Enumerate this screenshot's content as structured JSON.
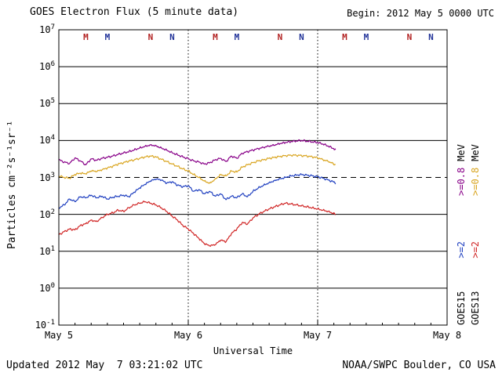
{
  "header": {
    "title": "GOES Electron Flux (5 minute data)",
    "begin": "Begin: 2012 May 5 0000 UTC"
  },
  "footer": {
    "updated": "Updated 2012 May  7 03:21:02 UTC",
    "credit": "NOAA/SWPC Boulder, CO USA"
  },
  "y_axis": {
    "label": "Particles cm⁻²s⁻¹sr⁻¹",
    "exponents": [
      7,
      6,
      5,
      4,
      3,
      2,
      1,
      0,
      -1
    ]
  },
  "x_axis": {
    "label": "Universal Time",
    "ticks": [
      {
        "hour": 0,
        "label": "May 5"
      },
      {
        "hour": 24,
        "label": "May 6"
      },
      {
        "hour": 48,
        "label": "May 7"
      },
      {
        "hour": 72,
        "label": "May 8"
      }
    ]
  },
  "day_lines_hours": [
    24,
    48
  ],
  "event_markers": [
    {
      "hour": 5,
      "label": "M",
      "color": "#B22222"
    },
    {
      "hour": 9,
      "label": "M",
      "color": "#223399"
    },
    {
      "hour": 17,
      "label": "N",
      "color": "#B22222"
    },
    {
      "hour": 21,
      "label": "N",
      "color": "#223399"
    },
    {
      "hour": 29,
      "label": "M",
      "color": "#B22222"
    },
    {
      "hour": 33,
      "label": "M",
      "color": "#223399"
    },
    {
      "hour": 41,
      "label": "N",
      "color": "#B22222"
    },
    {
      "hour": 45,
      "label": "N",
      "color": "#223399"
    },
    {
      "hour": 53,
      "label": "M",
      "color": "#B22222"
    },
    {
      "hour": 57,
      "label": "M",
      "color": "#223399"
    },
    {
      "hour": 65,
      "label": "N",
      "color": "#B22222"
    },
    {
      "hour": 69,
      "label": "N",
      "color": "#223399"
    }
  ],
  "legend": {
    "goes15": {
      "satellite": "GOES15",
      "e2": ">=2",
      "e08": ">=0.8",
      "mev": "MeV",
      "e08_color": "#880088",
      "e2_color": "#2040C0"
    },
    "goes13": {
      "satellite": "GOES13",
      "e2": ">=2",
      "e08": ">=0.8",
      "mev": "MeV",
      "e08_color": "#D9A520",
      "e2_color": "#D02525"
    }
  },
  "chart_data": {
    "type": "line",
    "title": "GOES Electron Flux (5 minute data)",
    "xlabel": "Universal Time",
    "ylabel": "Particles cm⁻²s⁻¹sr⁻¹",
    "y_scale": "log10",
    "ylim_exponents": [
      -1,
      7
    ],
    "x_range_hours": [
      0,
      72
    ],
    "x_day_labels": [
      "May 5",
      "May 6",
      "May 7",
      "May 8"
    ],
    "threshold_flux": 1000,
    "grid": "solid horizontal per decade, dashed at 1e3, dotted vertical at day boundaries",
    "x_hours": [
      0,
      1,
      2,
      3,
      4,
      5,
      6,
      7,
      8,
      9,
      10,
      11,
      12,
      13,
      14,
      15,
      16,
      17,
      18,
      19,
      20,
      21,
      22,
      23,
      24,
      25,
      26,
      27,
      28,
      29,
      30,
      31,
      32,
      33,
      34,
      35,
      36,
      37,
      38,
      39,
      40,
      41,
      42,
      43,
      44,
      45,
      46,
      47,
      48,
      49,
      50,
      51,
      51.3
    ],
    "series": [
      {
        "name": "GOES13 >=2 MeV",
        "color": "#D02525",
        "flux": [
          28,
          34,
          40,
          38,
          50,
          56,
          70,
          64,
          82,
          100,
          110,
          130,
          120,
          150,
          180,
          200,
          220,
          200,
          180,
          150,
          120,
          90,
          70,
          50,
          40,
          30,
          22,
          16,
          14,
          15,
          20,
          18,
          30,
          40,
          60,
          55,
          80,
          100,
          120,
          140,
          160,
          180,
          200,
          190,
          180,
          170,
          160,
          150,
          140,
          130,
          120,
          105,
          100
        ]
      },
      {
        "name": "GOES15 >=2 MeV",
        "color": "#2040C0",
        "flux": [
          150,
          180,
          260,
          220,
          300,
          280,
          330,
          280,
          310,
          260,
          290,
          310,
          330,
          300,
          400,
          520,
          650,
          800,
          900,
          850,
          700,
          760,
          620,
          560,
          600,
          420,
          470,
          360,
          420,
          310,
          360,
          250,
          310,
          280,
          360,
          300,
          420,
          520,
          620,
          720,
          820,
          920,
          1000,
          1100,
          1150,
          1200,
          1150,
          1100,
          1050,
          950,
          850,
          750,
          700
        ]
      },
      {
        "name": "GOES13 >=0.8 MeV",
        "color": "#D9A520",
        "flux": [
          1100,
          1000,
          950,
          1200,
          1300,
          1250,
          1500,
          1450,
          1600,
          1800,
          2000,
          2300,
          2500,
          2800,
          3000,
          3300,
          3600,
          3800,
          3600,
          3100,
          2700,
          2300,
          2000,
          1700,
          1500,
          1200,
          1000,
          800,
          700,
          900,
          1200,
          1100,
          1500,
          1400,
          1900,
          2200,
          2500,
          2800,
          3000,
          3300,
          3500,
          3700,
          3900,
          4000,
          4000,
          3900,
          3800,
          3600,
          3400,
          3000,
          2700,
          2300,
          2200
        ]
      },
      {
        "name": "GOES15 >=0.8 MeV",
        "color": "#880088",
        "flux": [
          3000,
          2600,
          2400,
          3400,
          2800,
          2200,
          3200,
          2900,
          3300,
          3500,
          3800,
          4200,
          4600,
          5000,
          5600,
          6300,
          7000,
          7600,
          7200,
          6300,
          5500,
          4700,
          4100,
          3600,
          3200,
          2800,
          2600,
          2300,
          2500,
          3000,
          3300,
          2700,
          3800,
          3300,
          4500,
          5000,
          5500,
          6000,
          6500,
          7000,
          7500,
          8200,
          8800,
          9300,
          9700,
          10000,
          9600,
          9200,
          8800,
          8000,
          7000,
          6000,
          5600
        ]
      }
    ]
  }
}
